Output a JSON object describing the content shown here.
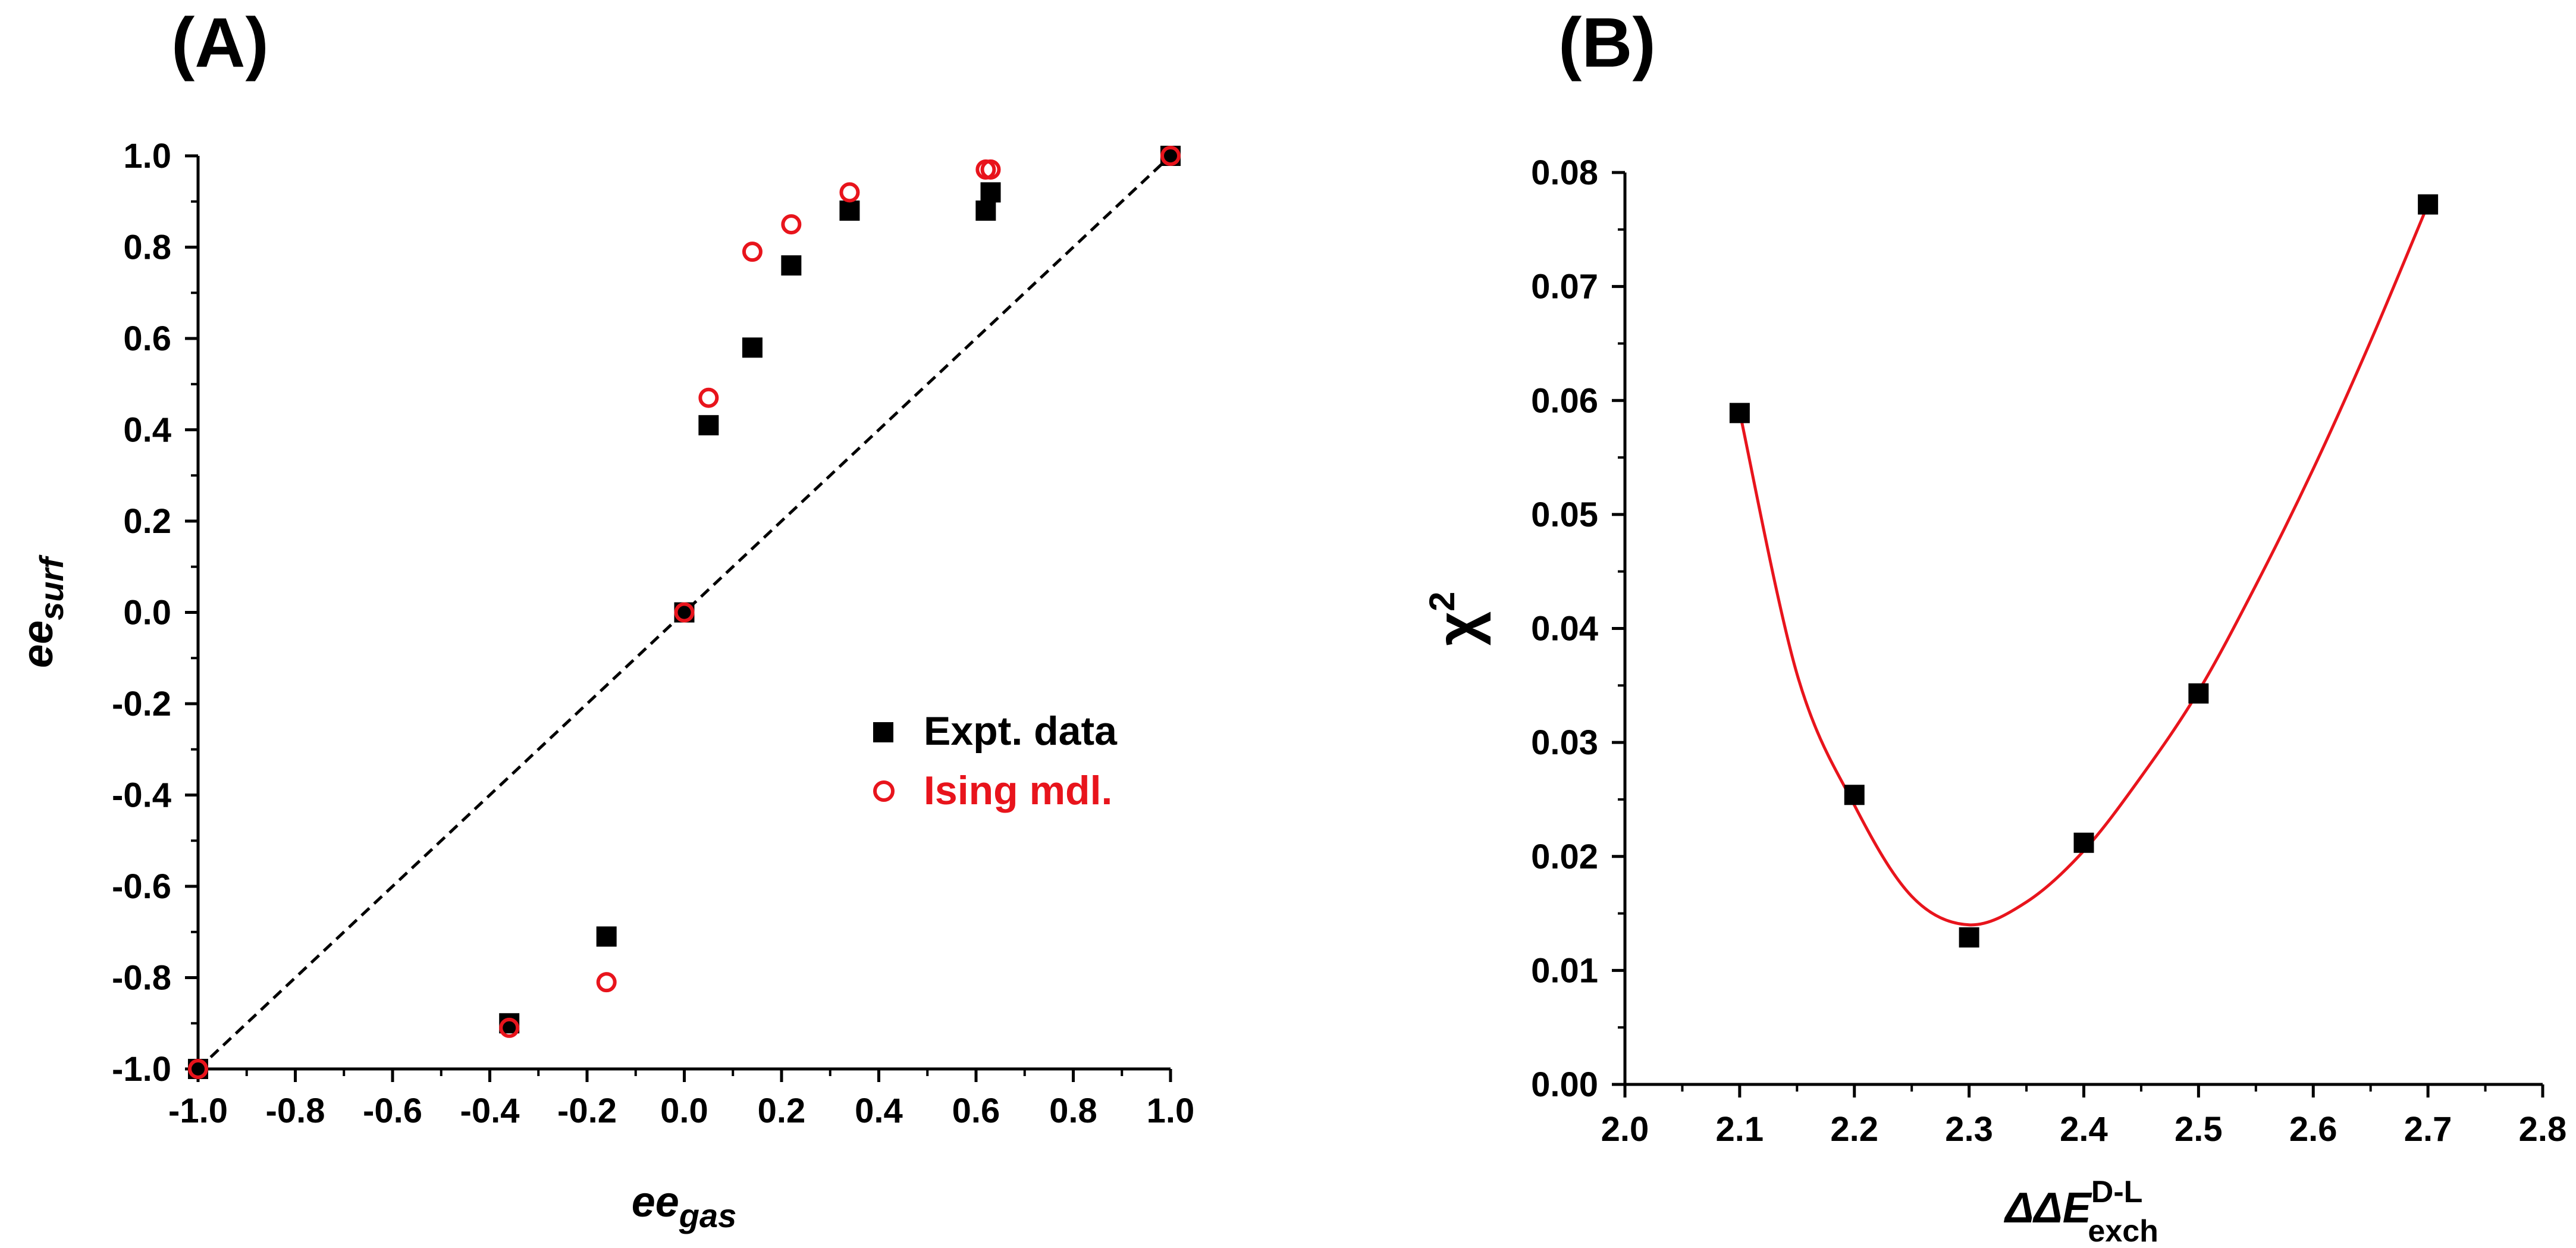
{
  "colors": {
    "expt": "#000000",
    "ising": "#e8141c",
    "fit": "#e8141c",
    "axis": "#000000"
  },
  "chart_data": [
    {
      "panel": "(A)",
      "type": "scatter",
      "xlabel": "ee",
      "xlabel_sub": "gas",
      "ylabel": "ee",
      "ylabel_sub": "surf",
      "xlim": [
        -1.0,
        1.0
      ],
      "ylim": [
        -1.0,
        1.0
      ],
      "xticks": [
        "-1.0",
        "-0.8",
        "-0.6",
        "-0.4",
        "-0.2",
        "0.0",
        "0.2",
        "0.4",
        "0.6",
        "0.8",
        "1.0"
      ],
      "yticks": [
        "-1.0",
        "-0.8",
        "-0.6",
        "-0.4",
        "-0.2",
        "0.0",
        "0.2",
        "0.4",
        "0.6",
        "0.8",
        "1.0"
      ],
      "grid": false,
      "legend_position": "right-middle",
      "reference_line": {
        "style": "dashed",
        "from": [
          -1.0,
          -1.0
        ],
        "to": [
          1.0,
          1.0
        ]
      },
      "series": [
        {
          "name": "Expt. data",
          "marker": "filled-square",
          "points": [
            [
              -1.0,
              -1.0
            ],
            [
              -0.36,
              -0.9
            ],
            [
              -0.16,
              -0.71
            ],
            [
              0.0,
              0.0
            ],
            [
              0.05,
              0.41
            ],
            [
              0.14,
              0.58
            ],
            [
              0.22,
              0.76
            ],
            [
              0.34,
              0.88
            ],
            [
              0.62,
              0.88
            ],
            [
              0.63,
              0.92
            ],
            [
              1.0,
              1.0
            ]
          ]
        },
        {
          "name": "Ising mdl.",
          "marker": "open-circle",
          "points": [
            [
              -1.0,
              -1.0
            ],
            [
              -0.36,
              -0.91
            ],
            [
              -0.16,
              -0.81
            ],
            [
              0.0,
              0.0
            ],
            [
              0.05,
              0.47
            ],
            [
              0.14,
              0.79
            ],
            [
              0.22,
              0.85
            ],
            [
              0.34,
              0.92
            ],
            [
              0.62,
              0.97
            ],
            [
              0.63,
              0.97
            ],
            [
              1.0,
              1.0
            ]
          ]
        }
      ]
    },
    {
      "panel": "(B)",
      "type": "scatter",
      "xlabel": "ΔΔE",
      "xlabel_sup": "D-L",
      "xlabel_sub": "exch",
      "ylabel": "χ",
      "ylabel_sup": "2",
      "xlim": [
        2.0,
        2.8
      ],
      "ylim": [
        0.0,
        0.08
      ],
      "xticks": [
        "2.0",
        "2.1",
        "2.2",
        "2.3",
        "2.4",
        "2.5",
        "2.6",
        "2.7",
        "2.8"
      ],
      "yticks": [
        "0.00",
        "0.01",
        "0.02",
        "0.03",
        "0.04",
        "0.05",
        "0.06",
        "0.07",
        "0.08"
      ],
      "grid": false,
      "series": [
        {
          "name": "chi-square",
          "marker": "filled-square",
          "points": [
            [
              2.1,
              0.0589
            ],
            [
              2.2,
              0.0254
            ],
            [
              2.3,
              0.0129
            ],
            [
              2.4,
              0.0212
            ],
            [
              2.5,
              0.0343
            ],
            [
              2.7,
              0.0772
            ]
          ]
        }
      ],
      "fit_curve": {
        "type": "polynomial",
        "color": "red",
        "x_range": [
          2.1,
          2.7
        ],
        "points": [
          [
            2.1,
            0.059
          ],
          [
            2.15,
            0.036
          ],
          [
            2.2,
            0.0245
          ],
          [
            2.25,
            0.0165
          ],
          [
            2.3,
            0.014
          ],
          [
            2.35,
            0.016
          ],
          [
            2.4,
            0.0205
          ],
          [
            2.45,
            0.027
          ],
          [
            2.5,
            0.0345
          ],
          [
            2.55,
            0.0438
          ],
          [
            2.6,
            0.054
          ],
          [
            2.65,
            0.0652
          ],
          [
            2.7,
            0.0772
          ]
        ]
      }
    }
  ]
}
